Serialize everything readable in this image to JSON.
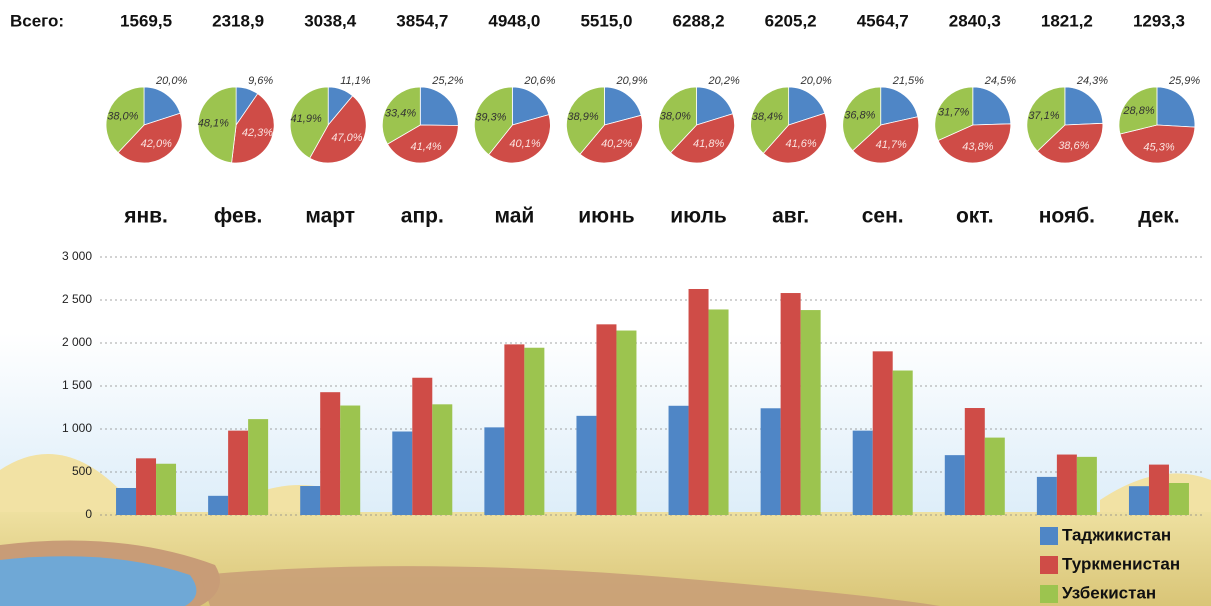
{
  "chart_data": [
    {
      "type": "pie",
      "totals_label": "Всего:",
      "totals": [
        1569.5,
        2318.9,
        3038.4,
        3854.7,
        4948.0,
        5515.0,
        6288.2,
        6205.2,
        4564.7,
        2840.3,
        1821.2,
        1293.3
      ],
      "totals_labels": [
        "1569,5",
        "2318,9",
        "3038,4",
        "3854,7",
        "4948,0",
        "5515,0",
        "6288,2",
        "6205,2",
        "4564,7",
        "2840,3",
        "1821,2",
        "1293,3"
      ],
      "colors": [
        "#4f86c6",
        "#cf4c47",
        "#9cc44f"
      ],
      "pies": [
        {
          "values": [
            20.0,
            42.0,
            38.0
          ],
          "value_labels": [
            "20,0%",
            "42,0%",
            "38,0%"
          ]
        },
        {
          "values": [
            9.6,
            42.3,
            48.1
          ],
          "value_labels": [
            "9,6%",
            "42,3%",
            "48,1%"
          ]
        },
        {
          "values": [
            11.1,
            47.0,
            41.9
          ],
          "value_labels": [
            "11,1%",
            "47,0%",
            "41,9%"
          ]
        },
        {
          "values": [
            25.2,
            41.4,
            33.4
          ],
          "value_labels": [
            "25,2%",
            "41,4%",
            "33,4%"
          ]
        },
        {
          "values": [
            20.6,
            40.1,
            39.3
          ],
          "value_labels": [
            "20,6%",
            "40,1%",
            "39,3%"
          ]
        },
        {
          "values": [
            20.9,
            40.2,
            38.9
          ],
          "value_labels": [
            "20,9%",
            "40,2%",
            "38,9%"
          ]
        },
        {
          "values": [
            20.2,
            41.8,
            38.0
          ],
          "value_labels": [
            "20,2%",
            "41,8%",
            "38,0%"
          ]
        },
        {
          "values": [
            20.0,
            41.6,
            38.4
          ],
          "value_labels": [
            "20,0%",
            "41,6%",
            "38,4%"
          ]
        },
        {
          "values": [
            21.5,
            41.7,
            36.8
          ],
          "value_labels": [
            "21,5%",
            "41,7%",
            "36,8%"
          ]
        },
        {
          "values": [
            24.5,
            43.8,
            31.7
          ],
          "value_labels": [
            "24,5%",
            "43,8%",
            "31,7%"
          ]
        },
        {
          "values": [
            24.3,
            38.6,
            37.1
          ],
          "value_labels": [
            "24,3%",
            "38,6%",
            "37,1%"
          ]
        },
        {
          "values": [
            25.9,
            45.3,
            28.8
          ],
          "value_labels": [
            "25,9%",
            "45,3%",
            "28,8%"
          ]
        }
      ]
    },
    {
      "type": "bar",
      "categories": [
        "янв.",
        "фев.",
        "март",
        "апр.",
        "май",
        "июнь",
        "июль",
        "авг.",
        "сен.",
        "окт.",
        "нояб.",
        "дек."
      ],
      "series": [
        {
          "name": "Таджикистан",
          "color": "#4f86c6",
          "values": [
            314,
            223,
            337,
            971,
            1019,
            1153,
            1270,
            1241,
            981,
            696,
            443,
            335
          ]
        },
        {
          "name": "Туркменистан",
          "color": "#cf4c47",
          "values": [
            659,
            981,
            1428,
            1596,
            1984,
            2217,
            2628,
            2581,
            1903,
            1244,
            703,
            586
          ]
        },
        {
          "name": "Узбекистан",
          "color": "#9cc44f",
          "values": [
            596,
            1115,
            1273,
            1287,
            1945,
            2145,
            2390,
            2383,
            1680,
            900,
            676,
            372
          ]
        }
      ],
      "ylim": [
        0,
        3000
      ],
      "yticks": [
        0,
        500,
        {
          "value": 1000,
          "label": "1 000"
        },
        {
          "value": 1500,
          "label": "1 500"
        },
        {
          "value": 2000,
          "label": "2 000"
        },
        {
          "value": 2500,
          "label": "2 500"
        },
        {
          "value": 3000,
          "label": "3 000"
        }
      ],
      "grid": true,
      "legend": "bottom-right"
    }
  ]
}
